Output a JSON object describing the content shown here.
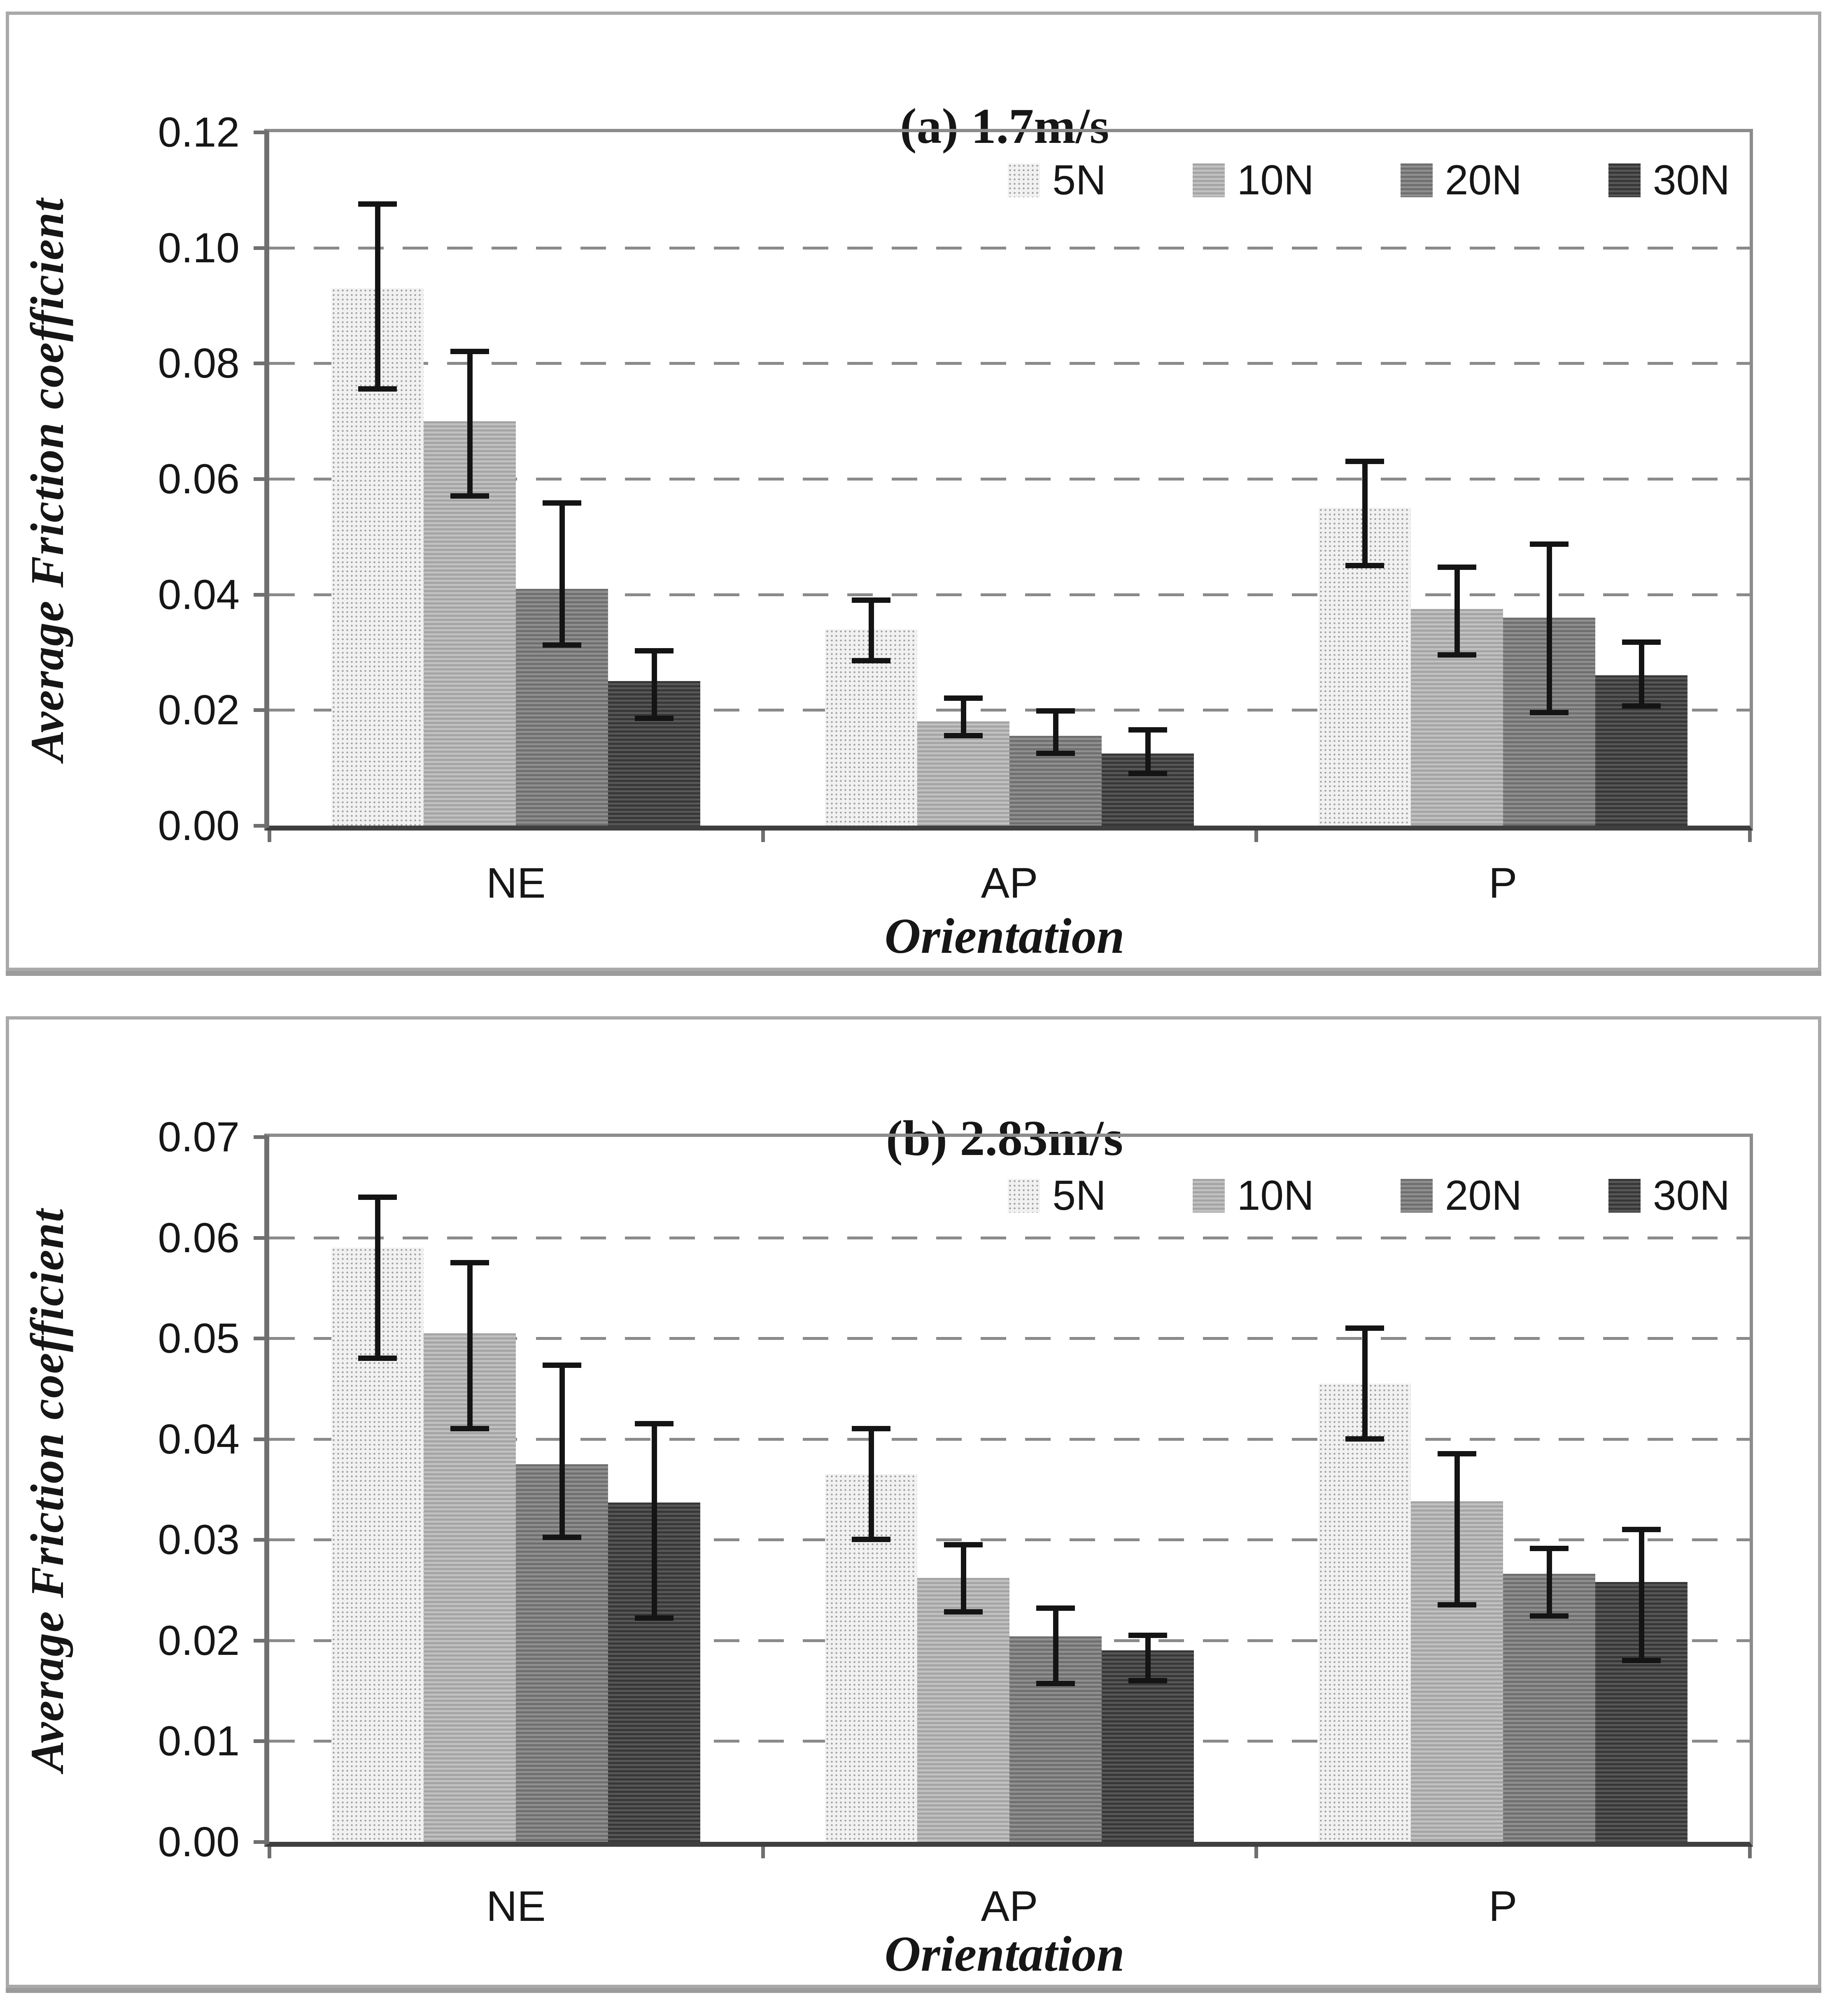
{
  "colors": {
    "background": "#ffffff",
    "panel_border": "#a9a9a9",
    "grid_line": "#8a8a8a",
    "axis_line": "#3f3f3f",
    "error_bar": "#141414",
    "text": "#161616",
    "series_fills": {
      "5N": "#f1f1f1",
      "10N": "#b0b0b0",
      "20N": "#7d7d7d",
      "30N": "#454545"
    }
  },
  "chart_data": [
    {
      "id": "a",
      "type": "bar",
      "title": "(a) 1.7m/s",
      "xlabel": "Orientation",
      "ylabel": "Average Friction coefficient",
      "categories": [
        "NE",
        "AP",
        "P"
      ],
      "legend": [
        "5N",
        "10N",
        "20N",
        "30N"
      ],
      "legend_position": "top-right-inside",
      "grid": "dashed-horizontal",
      "ylim": [
        0,
        0.12
      ],
      "ytick_step": 0.02,
      "ytick_labels": [
        "0.12",
        "0.10",
        "0.08",
        "0.06",
        "0.04",
        "0.02",
        "0.00"
      ],
      "series": [
        {
          "name": "5N",
          "values": [
            0.093,
            0.034,
            0.055
          ],
          "err_hi": [
            0.1075,
            0.039,
            0.063
          ],
          "err_lo": [
            0.0755,
            0.0285,
            0.045
          ]
        },
        {
          "name": "10N",
          "values": [
            0.07,
            0.018,
            0.0375
          ],
          "err_hi": [
            0.082,
            0.022,
            0.0447
          ],
          "err_lo": [
            0.057,
            0.0155,
            0.0295
          ]
        },
        {
          "name": "20N",
          "values": [
            0.041,
            0.0155,
            0.036
          ],
          "err_hi": [
            0.0558,
            0.0198,
            0.0487
          ],
          "err_lo": [
            0.0312,
            0.0125,
            0.0195
          ]
        },
        {
          "name": "30N",
          "values": [
            0.025,
            0.0125,
            0.026
          ],
          "err_hi": [
            0.0302,
            0.0165,
            0.0317
          ],
          "err_lo": [
            0.0185,
            0.009,
            0.0207
          ]
        }
      ]
    },
    {
      "id": "b",
      "type": "bar",
      "title": "(b) 2.83m/s",
      "xlabel": "Orientation",
      "ylabel": "Average Friction coefficient",
      "categories": [
        "NE",
        "AP",
        "P"
      ],
      "legend": [
        "5N",
        "10N",
        "20N",
        "30N"
      ],
      "legend_position": "top-right-inside",
      "grid": "dashed-horizontal",
      "ylim": [
        0,
        0.07
      ],
      "ytick_step": 0.01,
      "ytick_labels": [
        "0.07",
        "0.06",
        "0.05",
        "0.04",
        "0.03",
        "0.02",
        "0.01",
        "0.00"
      ],
      "series": [
        {
          "name": "5N",
          "values": [
            0.059,
            0.0365,
            0.0455
          ],
          "err_hi": [
            0.064,
            0.041,
            0.051
          ],
          "err_lo": [
            0.048,
            0.03,
            0.04
          ]
        },
        {
          "name": "10N",
          "values": [
            0.0505,
            0.0262,
            0.0338
          ],
          "err_hi": [
            0.0575,
            0.0295,
            0.0385
          ],
          "err_lo": [
            0.041,
            0.0228,
            0.0235
          ]
        },
        {
          "name": "20N",
          "values": [
            0.0375,
            0.0204,
            0.0266
          ],
          "err_hi": [
            0.0473,
            0.0232,
            0.0291
          ],
          "err_lo": [
            0.0302,
            0.0157,
            0.0224
          ]
        },
        {
          "name": "30N",
          "values": [
            0.0337,
            0.019,
            0.0258
          ],
          "err_hi": [
            0.0415,
            0.0205,
            0.031
          ],
          "err_lo": [
            0.0222,
            0.016,
            0.018
          ]
        }
      ]
    }
  ]
}
